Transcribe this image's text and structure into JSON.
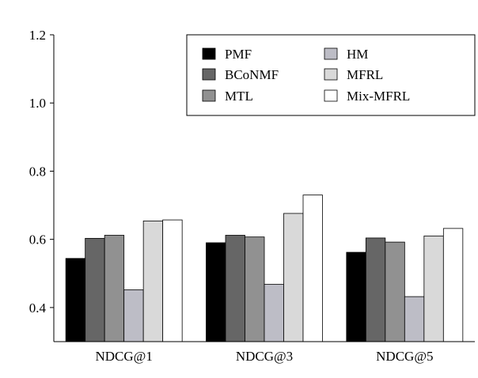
{
  "chart_data": {
    "type": "bar",
    "title": "",
    "xlabel": "",
    "ylabel": "",
    "ylim": [
      0.3,
      1.2
    ],
    "yticks": [
      0.4,
      0.6,
      0.8,
      1.0,
      1.2
    ],
    "ytick_labels": [
      "0.4",
      "0.6",
      "0.8",
      "1.0",
      "1.2"
    ],
    "grid": false,
    "legend_position": "top-right",
    "categories": [
      "NDCG@1",
      "NDCG@3",
      "NDCG@5"
    ],
    "series": [
      {
        "name": "PMF",
        "color": "#000000",
        "values": [
          0.544,
          0.59,
          0.562
        ]
      },
      {
        "name": "BCoNMF",
        "color": "#666666",
        "values": [
          0.603,
          0.612,
          0.604
        ]
      },
      {
        "name": "MTL",
        "color": "#919191",
        "values": [
          0.612,
          0.607,
          0.592
        ]
      },
      {
        "name": "HM",
        "color": "#bdbdc6",
        "values": [
          0.452,
          0.468,
          0.432
        ]
      },
      {
        "name": "MFRL",
        "color": "#d9d9d9",
        "values": [
          0.654,
          0.676,
          0.61
        ]
      },
      {
        "name": "Mix-MFRL",
        "color": "#ffffff",
        "values": [
          0.657,
          0.73,
          0.632
        ]
      }
    ]
  }
}
